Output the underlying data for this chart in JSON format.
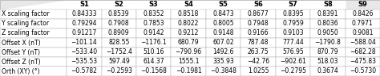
{
  "columns": [
    "",
    "S1",
    "S2",
    "S3",
    "S4",
    "S5",
    "S6",
    "S7",
    "S8",
    "S9"
  ],
  "rows": [
    [
      "X scaling factor",
      "0.84333",
      "0.8539",
      "0.8352",
      "0.8518",
      "0.8473",
      "0.8677",
      "0.8395",
      "0.8391",
      "0.8426"
    ],
    [
      "Y scaling factor",
      "0.79294",
      "0.7908",
      "0.7853",
      "0.8022",
      "0.8005",
      "0.7948",
      "0.7959",
      "0.8036",
      "0.7971"
    ],
    [
      "Z scaling factor",
      "0.91217",
      "0.8909",
      "0.9142",
      "0.9212",
      "0.9148",
      "0.9166",
      "0.9103",
      "0.9050",
      "0.9081"
    ],
    [
      "Offset X (nT)",
      "−101.14",
      "828.55",
      "−1176.1",
      "680.79",
      "607.02",
      "787.48",
      "777.44",
      "−1790.8",
      "−588.04"
    ],
    [
      "Offset Y (nT)",
      "−533.40",
      "−1752.4",
      "510.16",
      "−790.96",
      "1492.6",
      "263.75",
      "576.95",
      "870.79",
      "−682.28"
    ],
    [
      "Offset Z (nT)",
      "−535.53",
      "597.49",
      "614.37",
      "1555.1",
      "335.93",
      "−42.76",
      "−902.61",
      "518.03",
      "−475.83"
    ],
    [
      "Orth (XY) (°)",
      "−0.5782",
      "−0.2593",
      "−0.1568",
      "−0.1981",
      "−0.3848",
      "1.0255",
      "−0.2795",
      "0.3674",
      "−0.5730"
    ]
  ],
  "header_bg": "#e8e8e8",
  "row_bg_odd": "#ffffff",
  "row_bg_even": "#f5f5f5",
  "font_size": 5.5,
  "header_font_size": 6.0
}
